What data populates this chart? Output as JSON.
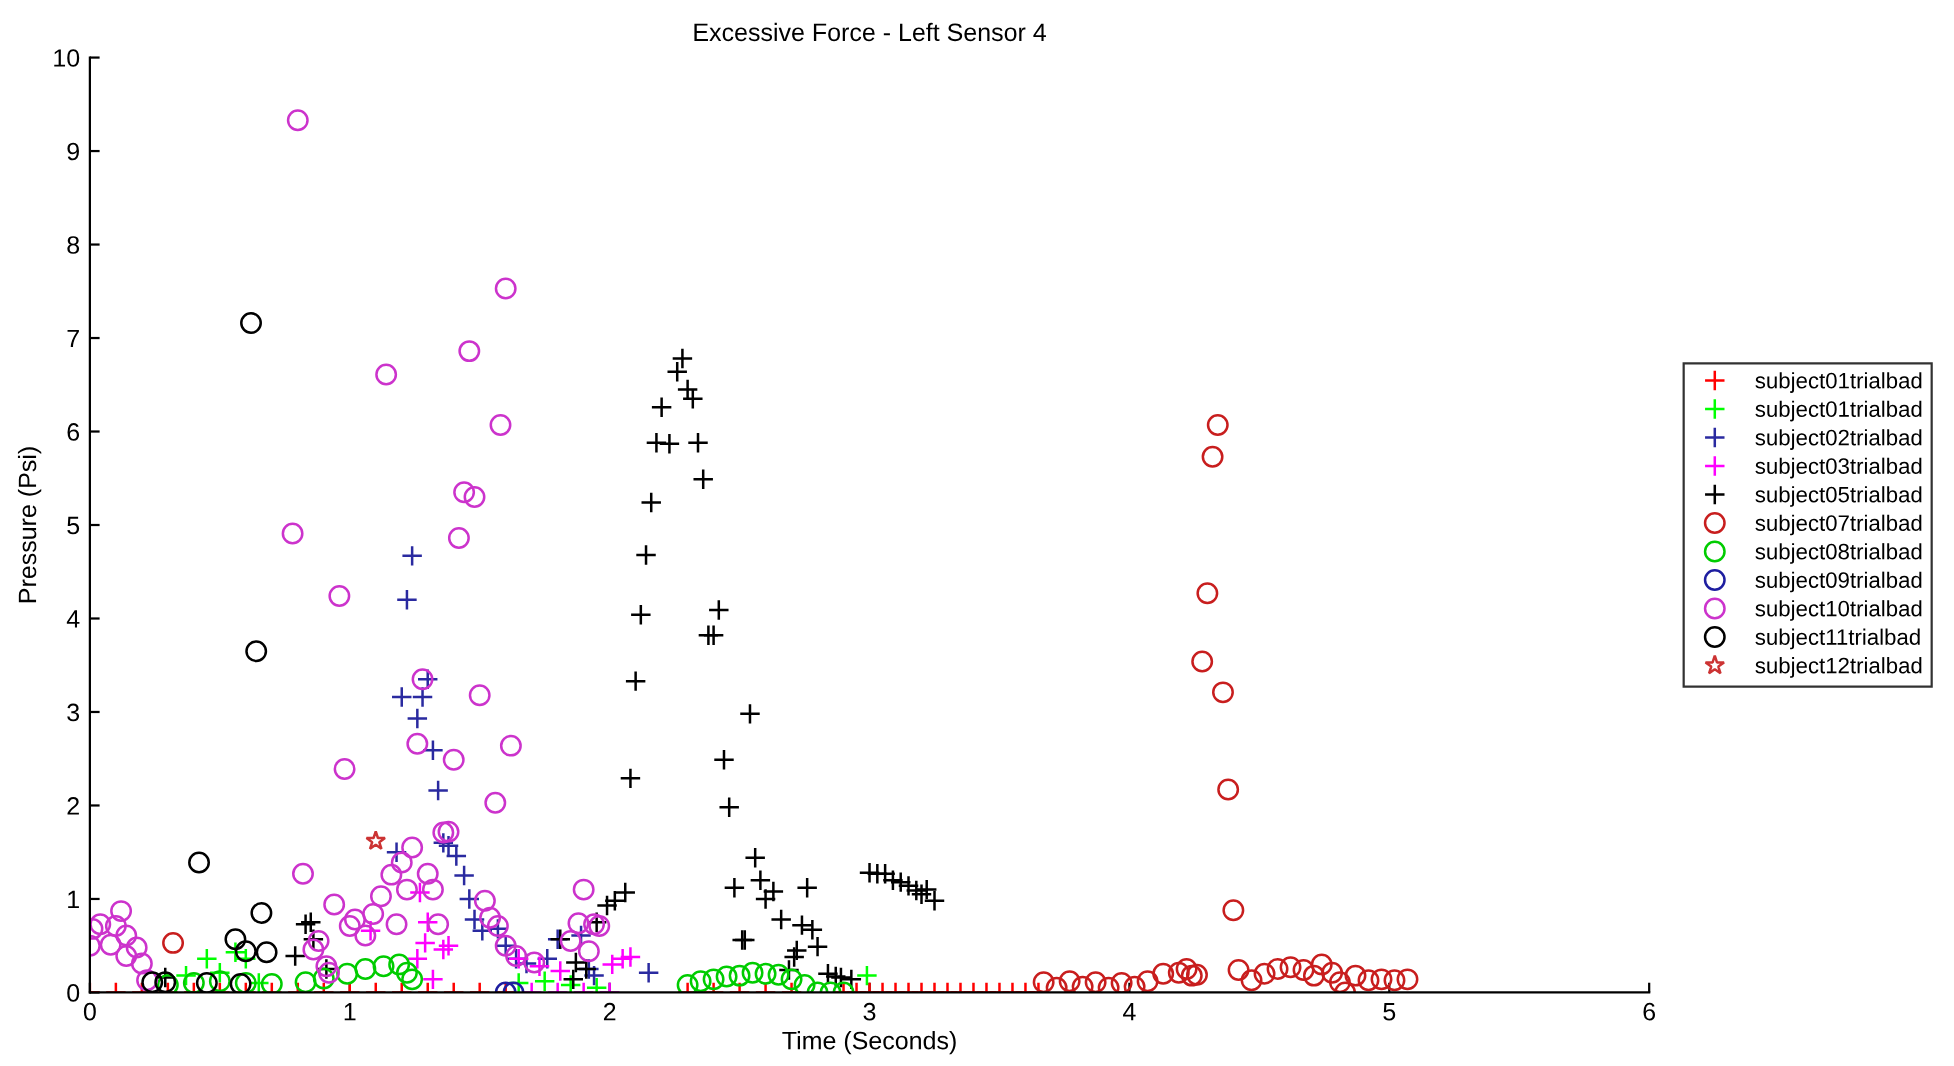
{
  "chart_data": {
    "type": "scatter",
    "title": "Excessive Force - Left Sensor 4",
    "xlabel": "Time (Seconds)",
    "ylabel": "Pressure (Psi)",
    "xlim": [
      0,
      6
    ],
    "ylim": [
      0,
      10
    ],
    "xticks": [
      0,
      1,
      2,
      3,
      4,
      5,
      6
    ],
    "yticks": [
      0,
      1,
      2,
      3,
      4,
      5,
      6,
      7,
      8,
      9,
      10
    ],
    "grid": false,
    "legend": "right",
    "series": [
      {
        "name": "subject01trialbad",
        "color": "#ff0000",
        "marker": "cross",
        "x": [
          0.0,
          0.1,
          0.2,
          0.3,
          0.4,
          0.5,
          0.6,
          0.7,
          0.8,
          0.9,
          1.0,
          1.1,
          1.2,
          1.3,
          1.4,
          1.5,
          1.6,
          2.3,
          2.4,
          2.5,
          2.6,
          2.7,
          2.9,
          2.95,
          3.0,
          3.05,
          3.1,
          3.15,
          3.2,
          3.25,
          3.3,
          3.35,
          3.4,
          3.45,
          3.5,
          3.55,
          3.6,
          3.65
        ],
        "values": [
          0,
          0,
          0,
          0,
          0,
          0,
          0,
          0,
          0,
          0,
          0,
          0,
          0,
          0,
          0,
          0,
          0,
          0,
          0,
          0,
          0,
          0,
          0,
          0,
          0,
          0,
          0,
          0,
          0,
          0,
          0,
          0,
          0,
          0,
          0,
          0,
          0,
          0
        ]
      },
      {
        "name": "subject01trialbad",
        "color": "#00ff00",
        "marker": "cross",
        "x": [
          0.37,
          0.45,
          0.5,
          0.56,
          0.6,
          0.65,
          1.65,
          1.75,
          1.85,
          1.95,
          2.99
        ],
        "values": [
          0.18,
          0.36,
          0.21,
          0.43,
          0.36,
          0.1,
          0.1,
          0.12,
          0.08,
          0.05,
          0.18
        ]
      },
      {
        "name": "subject02trialbad",
        "color": "#2a2aa0",
        "marker": "cross",
        "x": [
          1.24,
          1.22,
          1.2,
          1.28,
          1.3,
          1.26,
          1.32,
          1.34,
          1.18,
          1.36,
          1.38,
          1.41,
          1.44,
          1.46,
          1.48,
          1.51,
          1.54,
          1.57,
          1.6,
          1.64,
          1.68,
          1.76,
          1.8,
          1.89,
          1.92,
          1.94,
          2.15
        ],
        "values": [
          4.67,
          4.2,
          3.16,
          3.16,
          3.35,
          2.93,
          2.59,
          2.16,
          1.5,
          1.6,
          1.57,
          1.46,
          1.25,
          1.0,
          0.78,
          0.66,
          null,
          0.68,
          0.5,
          0.36,
          0.31,
          0.36,
          0.57,
          0.61,
          0.25,
          0.18,
          0.21
        ]
      },
      {
        "name": "subject03trialbad",
        "color": "#ff00ff",
        "marker": "cross",
        "x": [
          1.08,
          1.26,
          1.27,
          1.29,
          1.3,
          1.32,
          1.36,
          1.38,
          1.65,
          1.73,
          1.81,
          2.01,
          2.05,
          2.08,
          1.7,
          1.8,
          1.9,
          2.0
        ],
        "values": [
          0.66,
          0.36,
          1.07,
          0.53,
          0.75,
          0.14,
          0.46,
          0.5,
          0.36,
          0.28,
          0.23,
          0.3,
          0.36,
          0.38,
          0,
          0,
          0,
          0
        ]
      },
      {
        "name": "subject05trialbad",
        "color": "#000000",
        "marker": "cross",
        "x": [
          0.29,
          0.79,
          0.83,
          0.85,
          0.86,
          0.91,
          1.81,
          1.86,
          1.87,
          1.91,
          1.95,
          1.99,
          2.02,
          2.06,
          2.08,
          2.1,
          2.12,
          2.14,
          2.16,
          2.18,
          2.2,
          2.23,
          2.26,
          2.28,
          2.3,
          2.32,
          2.34,
          2.36,
          2.38,
          2.4,
          2.42,
          2.44,
          2.46,
          2.48,
          2.51,
          2.52,
          2.54,
          2.56,
          2.58,
          2.6,
          2.63,
          2.66,
          2.69,
          2.71,
          2.72,
          2.74,
          2.76,
          2.78,
          2.8,
          2.84,
          2.87,
          2.89,
          2.93,
          3.0,
          3.03,
          3.06,
          3.09,
          3.12,
          3.15,
          3.18,
          3.2,
          3.22,
          3.25
        ],
        "values": [
          0.16,
          0.39,
          0.73,
          0.75,
          0.57,
          0.25,
          0.57,
          0.14,
          0.32,
          0.25,
          0.75,
          0.93,
          0.98,
          1.07,
          2.29,
          3.33,
          4.04,
          4.68,
          5.24,
          5.88,
          6.26,
          5.87,
          6.64,
          6.78,
          6.45,
          6.35,
          5.88,
          5.49,
          3.82,
          3.82,
          4.09,
          2.49,
          1.98,
          1.12,
          0.56,
          0.56,
          2.98,
          1.44,
          1.2,
          1.0,
          1.08,
          0.78,
          0.24,
          0.38,
          0.45,
          0.72,
          1.12,
          0.67,
          0.49,
          0.2,
          0.17,
          0.16,
          0.14,
          1.28,
          1.27,
          1.27,
          1.2,
          1.18,
          1.14,
          1.09,
          1.05,
          1.1,
          0.98
        ]
      },
      {
        "name": "subject07trialbad",
        "color": "#c81e1e",
        "marker": "circle",
        "x": [
          0.32,
          3.67,
          3.72,
          3.77,
          3.82,
          3.87,
          3.92,
          3.97,
          4.02,
          4.07,
          4.13,
          4.19,
          4.22,
          4.24,
          4.26,
          4.28,
          4.3,
          4.32,
          4.34,
          4.36,
          4.38,
          4.4,
          4.42,
          4.47,
          4.52,
          4.57,
          4.62,
          4.67,
          4.71,
          4.74,
          4.78,
          4.81,
          4.83,
          4.87,
          4.92,
          4.97,
          5.02,
          5.07
        ],
        "values": [
          0.53,
          0.11,
          0.05,
          0.12,
          0.06,
          0.11,
          0.05,
          0.1,
          0.06,
          0.12,
          0.2,
          0.21,
          0.25,
          0.18,
          0.19,
          3.54,
          4.27,
          5.73,
          6.07,
          3.21,
          2.17,
          0.88,
          0.24,
          0.13,
          0.2,
          0.25,
          0.27,
          0.24,
          0.18,
          0.3,
          0.21,
          0.11,
          0.0,
          0.18,
          0.13,
          0.14,
          0.13,
          0.14
        ]
      },
      {
        "name": "subject08trialbad",
        "color": "#00cc00",
        "marker": "circle",
        "x": [
          0.3,
          0.4,
          0.5,
          0.6,
          0.7,
          0.83,
          0.9,
          0.99,
          1.06,
          1.13,
          1.19,
          1.22,
          1.24,
          2.3,
          2.35,
          2.4,
          2.45,
          2.5,
          2.55,
          2.6,
          2.65,
          2.7,
          2.75,
          2.8,
          2.85,
          2.9
        ],
        "values": [
          0.08,
          0.1,
          0.12,
          0.1,
          0.09,
          0.11,
          0.15,
          0.2,
          0.25,
          0.28,
          0.3,
          0.21,
          0.14,
          0.08,
          0.12,
          0.14,
          0.17,
          0.18,
          0.21,
          0.2,
          0.19,
          0.14,
          0.08,
          0,
          0,
          0
        ]
      },
      {
        "name": "subject09trialbad",
        "color": "#1e1ea0",
        "marker": "circle",
        "x": [
          1.6,
          1.63
        ],
        "values": [
          0,
          0
        ]
      },
      {
        "name": "subject10trialbad",
        "color": "#cc33cc",
        "marker": "circle",
        "x": [
          0.8,
          1.6,
          1.46,
          1.14,
          1.58,
          1.44,
          1.48,
          1.42,
          0.78,
          0.96,
          1.28,
          1.5,
          1.62,
          1.26,
          1.4,
          0.98,
          1.56,
          1.36,
          1.38,
          1.24,
          1.2,
          0.82,
          1.16,
          1.3,
          1.22,
          1.32,
          1.12,
          1.52,
          1.9,
          0.94,
          1.09,
          1.02,
          1.0,
          1.06,
          1.18,
          1.34,
          1.54,
          1.57,
          0.12,
          0.04,
          0.1,
          0.0,
          0.01,
          0.08,
          0.14,
          0.18,
          0.2,
          0.14,
          0.22,
          0.88,
          0.86,
          0.91,
          0.92,
          1.88,
          1.94,
          1.96,
          1.85,
          1.92,
          1.6,
          1.64,
          1.71
        ],
        "values": [
          9.33,
          7.53,
          6.86,
          6.61,
          6.07,
          5.35,
          5.3,
          4.86,
          4.91,
          4.24,
          3.35,
          3.18,
          2.64,
          2.66,
          2.49,
          2.39,
          2.03,
          1.71,
          1.72,
          1.55,
          1.39,
          1.27,
          1.26,
          1.27,
          1.1,
          1.1,
          1.03,
          0.98,
          1.1,
          0.94,
          0.84,
          0.78,
          0.71,
          0.61,
          0.73,
          0.73,
          0.8,
          0.71,
          0.87,
          0.73,
          0.71,
          0.5,
          0.68,
          0.51,
          0.61,
          0.48,
          0.31,
          0.39,
          0.13,
          0.55,
          0.46,
          0.28,
          0.21,
          0.74,
          0.73,
          0.71,
          0.55,
          0.44,
          0.5,
          0.39,
          0.32
        ]
      },
      {
        "name": "subject11trialbad",
        "color": "#000000",
        "marker": "circle",
        "x": [
          0.62,
          0.64,
          0.42,
          0.66,
          0.56,
          0.6,
          0.68,
          0.24,
          0.29,
          0.45,
          0.58
        ],
        "values": [
          7.16,
          3.65,
          1.39,
          0.85,
          0.57,
          0.44,
          0.43,
          0.11,
          0.11,
          0.1,
          0.09
        ]
      },
      {
        "name": "subject12trialbad",
        "color": "#cc3333",
        "marker": "star",
        "x": [
          1.1
        ],
        "values": [
          1.62
        ]
      }
    ]
  }
}
